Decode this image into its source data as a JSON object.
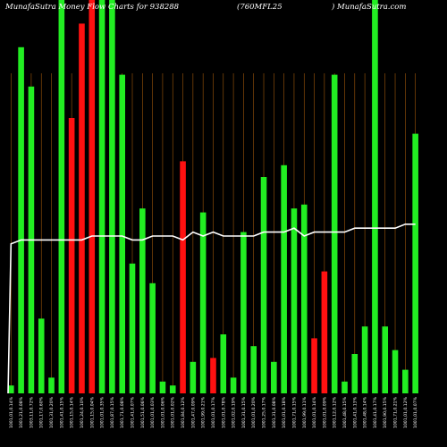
{
  "header": {
    "left": "MunafaSutra Money Flow Charts for 938288",
    "center": "(760MFL25",
    "right": ") MunafaSutra.com"
  },
  "chart_data": {
    "type": "bar",
    "ylim": [
      0,
      100
    ],
    "colors": {
      "up": "#22ee22",
      "down": "#ff1111",
      "grid": "#a0580a",
      "line": "#ffffff",
      "background": "#000000"
    },
    "categories": [
      "1001,01,0.14%",
      "1001,21,0.08%",
      "1003,11,0.72%",
      "1001,17,0.60%",
      "1001,31,0.20%",
      "1001,41,0.15%",
      "1001,15,0.14%",
      "1001,24,0.10%",
      "1001,15,0.04%",
      "1001,01,0.35%",
      "1001,87,0.15%",
      "1001,71,0.08%",
      "1001,41,0.07%",
      "1001,51,0.06%",
      "1001,01,0.03%",
      "1001,01,0.06%",
      "1001,01,0.02%",
      "1001,84,0.12%",
      "1001,47,0.09%",
      "1001,99,0.21%",
      "1001,01,0.17%",
      "1001,01,0.78%",
      "1001,02,0.19%",
      "1001,31,0.15%",
      "1001,01,0.20%",
      "1001,25,0.17%",
      "1001,31,0.08%",
      "1001,01,0.18%",
      "1001,71,0.15%",
      "1001,99,0.11%",
      "1001,01,0.14%",
      "1001,01,0.09%",
      "1001,12,0.12%",
      "1001,48,0.15%",
      "1001,41,0.13%",
      "1001,48,0.14%",
      "1001,41,0.17%",
      "1001,90,0.15%",
      "1001,71,0.21%",
      "1001,01,0.12%",
      "1001,01,0.07%"
    ],
    "values": [
      2,
      88,
      78,
      19,
      4,
      100,
      70,
      94,
      100,
      100,
      100,
      81,
      33,
      47,
      28,
      3,
      2,
      59,
      8,
      46,
      9,
      15,
      4,
      41,
      12,
      55,
      8,
      58,
      47,
      48,
      14,
      31,
      81,
      3,
      10,
      17,
      100,
      17,
      11,
      6,
      66
    ],
    "directions": [
      "up",
      "up",
      "up",
      "up",
      "up",
      "up",
      "down",
      "down",
      "down",
      "up",
      "up",
      "up",
      "up",
      "up",
      "up",
      "up",
      "up",
      "down",
      "up",
      "up",
      "down",
      "up",
      "up",
      "up",
      "up",
      "up",
      "up",
      "up",
      "up",
      "up",
      "down",
      "down",
      "up",
      "up",
      "up",
      "up",
      "up",
      "up",
      "up",
      "up",
      "up"
    ],
    "line_values": [
      38,
      39,
      39,
      39,
      39,
      39,
      39,
      39,
      40,
      40,
      40,
      40,
      39,
      39,
      40,
      40,
      40,
      39,
      41,
      40,
      41,
      40,
      40,
      40,
      40,
      41,
      41,
      41,
      42,
      40,
      41,
      41,
      41,
      41,
      42,
      42,
      42,
      42,
      42,
      43,
      43
    ],
    "line_start": 0
  }
}
